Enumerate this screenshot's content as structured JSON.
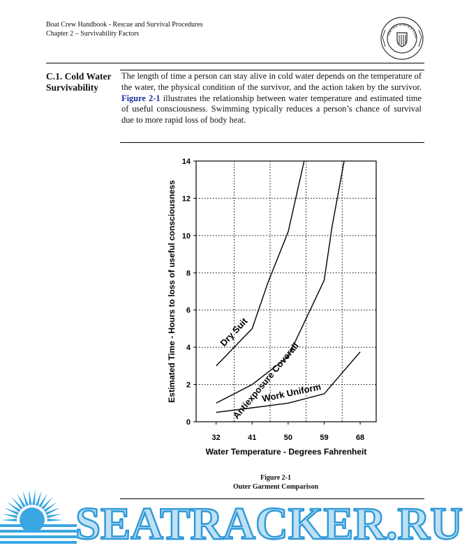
{
  "header": {
    "line1": "Boat Crew Handbook - Rescue and Survival Procedures",
    "line2": "Chapter 2 – Survivability Factors"
  },
  "seal": {
    "icon": "coast-guard-seal-icon",
    "text": "UNITED STATES COAST GUARD"
  },
  "section": {
    "title": "C.1. Cold Water Survivability",
    "body_before": "The length of time a person can stay alive in cold water depends on the temperature of the water, the physical condition of the survivor, and the action taken by the survivor.  ",
    "figure_ref": "Figure 2-1",
    "body_after": " illustrates the relationship between water temperature and estimated time of useful consciousness.  Swimming typically reduces a person’s chance of survival due to more rapid loss of body heat."
  },
  "chart_data": {
    "type": "line",
    "xlabel": "Water Temperature - Degrees Fahrenheit",
    "ylabel": "Estimated Time - Hours to loss of useful consciousness",
    "x_ticks": [
      32,
      41,
      50,
      59,
      68
    ],
    "y_ticks": [
      0,
      2,
      4,
      6,
      8,
      10,
      12,
      14
    ],
    "xlim": [
      27,
      72
    ],
    "ylim": [
      0,
      14
    ],
    "grid": true,
    "series": [
      {
        "name": "Dry Suit",
        "x": [
          32,
          41,
          45,
          50,
          54
        ],
        "y": [
          3,
          5,
          7.5,
          10.2,
          14
        ]
      },
      {
        "name": "Antiexposure Coverall",
        "x": [
          32,
          41,
          50,
          59,
          61,
          64
        ],
        "y": [
          1,
          2,
          3.5,
          7.6,
          10.5,
          14
        ]
      },
      {
        "name": "Work Uniform",
        "x": [
          32,
          41,
          50,
          59,
          63,
          68
        ],
        "y": [
          0.5,
          0.75,
          1,
          1.5,
          2.5,
          3.75
        ]
      }
    ]
  },
  "caption": {
    "line1": "Figure 2-1",
    "line2": "Outer Garment Comparison"
  },
  "watermark": {
    "text": "SEATRACKER.RU",
    "color": "#3aa7e2",
    "icon": "sunburst-icon"
  }
}
